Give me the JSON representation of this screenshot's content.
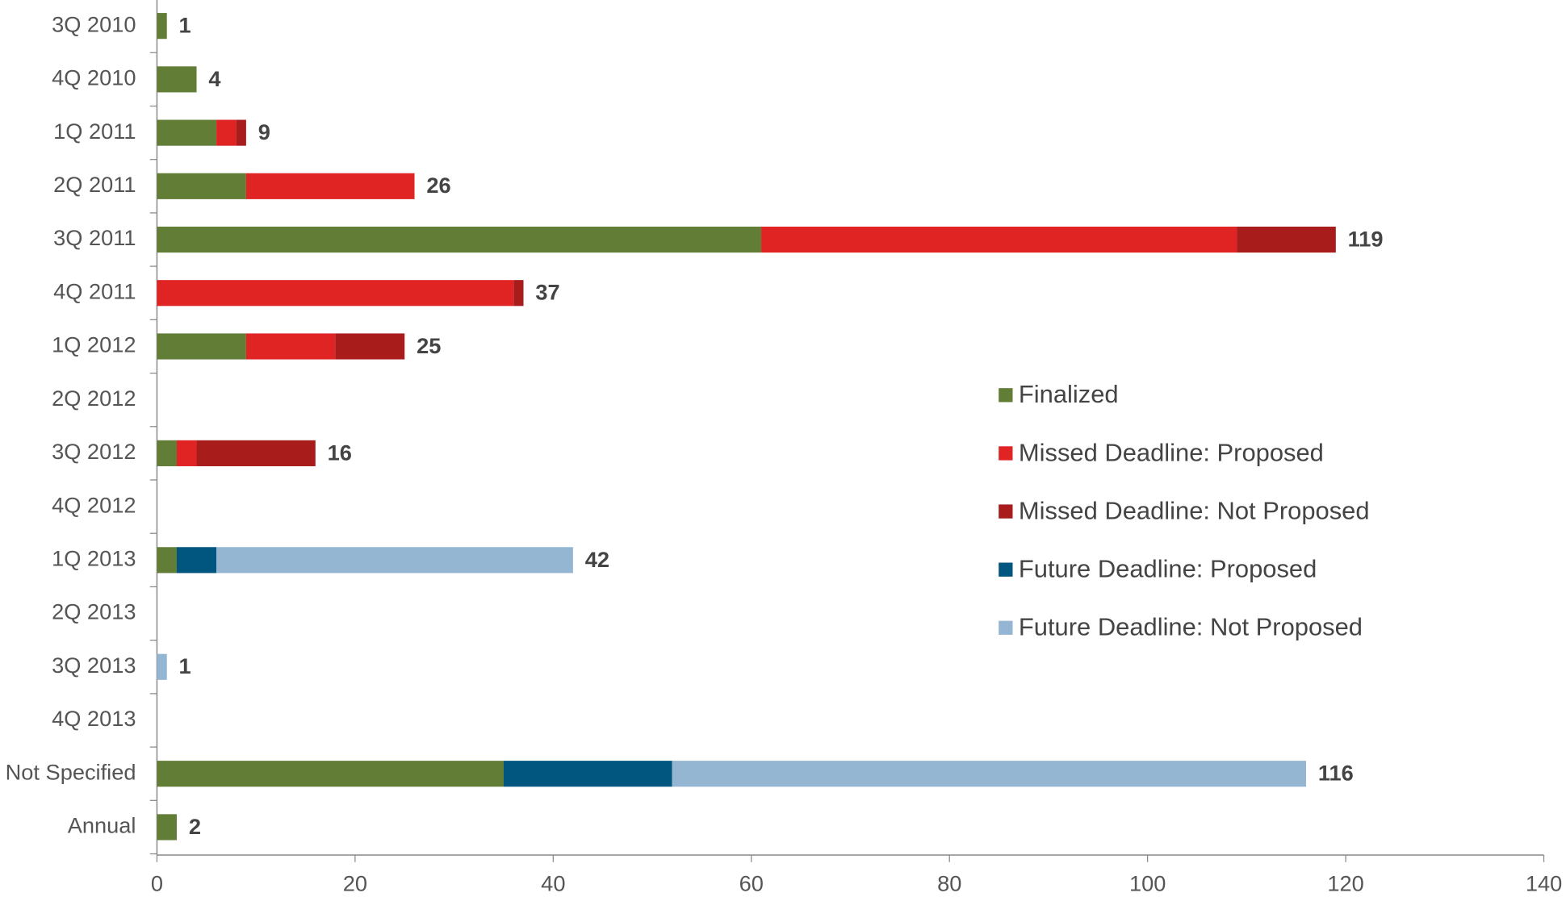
{
  "chart_data": {
    "type": "stacked_barh",
    "categories": [
      "3Q 2010",
      "4Q 2010",
      "1Q 2011",
      "2Q 2011",
      "3Q 2011",
      "4Q 2011",
      "1Q 2012",
      "2Q 2012",
      "3Q 2012",
      "4Q 2012",
      "1Q 2013",
      "2Q 2013",
      "3Q 2013",
      "4Q 2013",
      "Not Specified",
      "Annual"
    ],
    "series": [
      {
        "name": "Finalized",
        "color": "#617d36",
        "values": [
          1,
          4,
          6,
          9,
          61,
          0,
          9,
          0,
          2,
          0,
          2,
          0,
          0,
          0,
          35,
          2
        ]
      },
      {
        "name": "Missed Deadline: Proposed",
        "color": "#e02424",
        "values": [
          0,
          0,
          2,
          17,
          48,
          36,
          9,
          0,
          2,
          0,
          0,
          0,
          0,
          0,
          0,
          0
        ]
      },
      {
        "name": "Missed Deadline: Not Proposed",
        "color": "#a81c1c",
        "values": [
          0,
          0,
          1,
          0,
          10,
          1,
          7,
          0,
          12,
          0,
          0,
          0,
          0,
          0,
          0,
          0
        ]
      },
      {
        "name": "Future Deadline: Proposed",
        "color": "#00567f",
        "values": [
          0,
          0,
          0,
          0,
          0,
          0,
          0,
          0,
          0,
          0,
          4,
          0,
          0,
          0,
          17,
          0
        ]
      },
      {
        "name": "Future Deadline: Not Proposed",
        "color": "#94b6d3",
        "values": [
          0,
          0,
          0,
          0,
          0,
          0,
          0,
          0,
          0,
          0,
          36,
          0,
          1,
          0,
          64,
          0
        ]
      }
    ],
    "totals": [
      1,
      4,
      9,
      26,
      119,
      37,
      25,
      null,
      16,
      null,
      42,
      null,
      1,
      null,
      116,
      2
    ],
    "xlim": [
      0,
      140
    ],
    "xticks": [
      0,
      20,
      40,
      60,
      80,
      100,
      120,
      140
    ]
  }
}
